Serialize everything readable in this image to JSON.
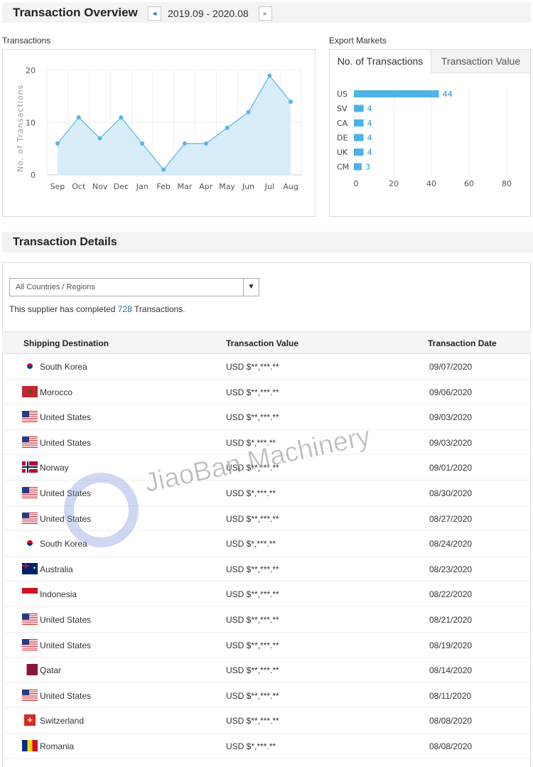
{
  "overview": {
    "title": "Transaction Overview",
    "range": "2019.09 - 2020.08",
    "prev_icon": "◄",
    "next_icon": "►"
  },
  "transactions_label": "Transactions",
  "chart_data": [
    {
      "type": "area",
      "xlabel": "",
      "ylabel": "No. of Transactions",
      "categories": [
        "Sep",
        "Oct",
        "Nov",
        "Dec",
        "Jan",
        "Feb",
        "Mar",
        "Apr",
        "May",
        "Jun",
        "Jul",
        "Aug"
      ],
      "values": [
        6,
        11,
        7,
        11,
        6,
        1,
        6,
        6,
        9,
        12,
        19,
        14
      ],
      "ylim": [
        0,
        20
      ],
      "yticks": [
        "0",
        "10",
        "20"
      ],
      "grid": true,
      "color": "#5bb5e6",
      "fill": "#d8ecf9"
    },
    {
      "type": "bar",
      "orientation": "horizontal",
      "categories": [
        "US",
        "SV",
        "CA",
        "DE",
        "UK",
        "CM"
      ],
      "values": [
        44,
        4,
        4,
        4,
        4,
        3
      ],
      "xlim": [
        0,
        80
      ],
      "xticks": [
        "0",
        "20",
        "40",
        "60",
        "80"
      ],
      "grid": true,
      "color": "#4db3e6",
      "label_color": "#2a8fd0"
    }
  ],
  "export": {
    "label": "Export Markets",
    "tabs": [
      {
        "label": "No. of Transactions",
        "active": true
      },
      {
        "label": "Transaction Value",
        "active": false
      }
    ]
  },
  "details": {
    "title": "Transaction Details",
    "filter": "All Countries / Regions",
    "summary_pre": "This supplier has completed",
    "count": "728",
    "summary_post": "Transactions.",
    "columns": [
      "Shipping Destination",
      "Transaction Value",
      "Transaction Date"
    ],
    "rows": [
      {
        "flag": "kr",
        "country": "South Korea",
        "value": "USD $**,***.**",
        "date": "09/07/2020"
      },
      {
        "flag": "ma",
        "country": "Morocco",
        "value": "USD $**,***.**",
        "date": "09/06/2020"
      },
      {
        "flag": "us",
        "country": "United States",
        "value": "USD $**,***.**",
        "date": "09/03/2020"
      },
      {
        "flag": "us",
        "country": "United States",
        "value": "USD $*,***.**",
        "date": "09/03/2020"
      },
      {
        "flag": "no",
        "country": "Norway",
        "value": "USD $**,***.**",
        "date": "09/01/2020"
      },
      {
        "flag": "us",
        "country": "United States",
        "value": "USD $*,***.**",
        "date": "08/30/2020"
      },
      {
        "flag": "us",
        "country": "United States",
        "value": "USD $**,***.**",
        "date": "08/27/2020"
      },
      {
        "flag": "kr",
        "country": "South Korea",
        "value": "USD $*,***.**",
        "date": "08/24/2020"
      },
      {
        "flag": "au",
        "country": "Australia",
        "value": "USD $**,***.**",
        "date": "08/23/2020"
      },
      {
        "flag": "id",
        "country": "Indonesia",
        "value": "USD $**,***.**",
        "date": "08/22/2020"
      },
      {
        "flag": "us",
        "country": "United States",
        "value": "USD $**,***.**",
        "date": "08/21/2020"
      },
      {
        "flag": "us",
        "country": "United States",
        "value": "USD $**,***.**",
        "date": "08/19/2020"
      },
      {
        "flag": "qa",
        "country": "Qatar",
        "value": "USD $**,***.**",
        "date": "08/14/2020"
      },
      {
        "flag": "us",
        "country": "United States",
        "value": "USD $**,***.**",
        "date": "08/11/2020"
      },
      {
        "flag": "ch",
        "country": "Switzerland",
        "value": "USD $**,***.**",
        "date": "08/08/2020"
      },
      {
        "flag": "ro",
        "country": "Romania",
        "value": "USD $*,***.**",
        "date": "08/08/2020"
      }
    ]
  },
  "watermark": "JiaoBan Machinery"
}
